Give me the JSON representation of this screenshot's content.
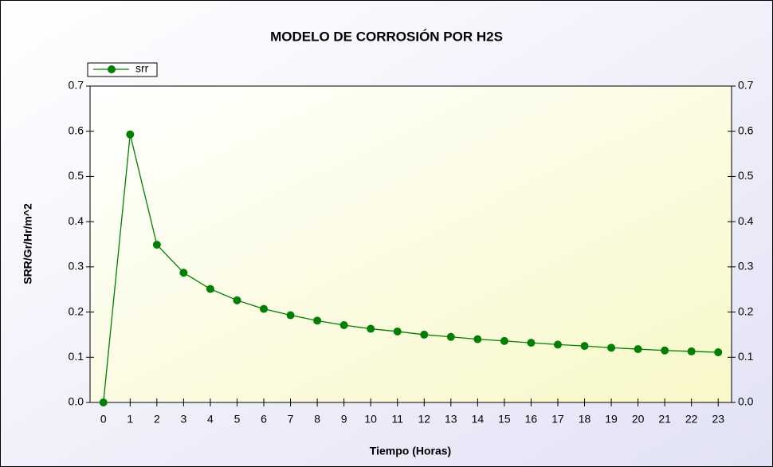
{
  "chart_data": {
    "type": "line",
    "title": "MODELO DE CORROSIÓN POR H2S",
    "x_label": "Tiempo (Horas)",
    "y_label": "SRR/Gr/Hr/m^2",
    "x": [
      0,
      1,
      2,
      3,
      4,
      5,
      6,
      7,
      8,
      9,
      10,
      11,
      12,
      13,
      14,
      15,
      16,
      17,
      18,
      19,
      20,
      21,
      22,
      23
    ],
    "series": [
      {
        "name": "srr",
        "color": "#008000",
        "values": [
          0,
          0.593,
          0.349,
          0.287,
          0.251,
          0.226,
          0.207,
          0.193,
          0.181,
          0.171,
          0.163,
          0.157,
          0.15,
          0.145,
          0.14,
          0.136,
          0.132,
          0.128,
          0.125,
          0.121,
          0.118,
          0.115,
          0.113,
          0.111
        ]
      }
    ],
    "xlim": [
      -0.5,
      23.5
    ],
    "xticks": [
      0,
      1,
      2,
      3,
      4,
      5,
      6,
      7,
      8,
      9,
      10,
      11,
      12,
      13,
      14,
      15,
      16,
      17,
      18,
      19,
      20,
      21,
      22,
      23
    ],
    "ylim": [
      0,
      0.7
    ],
    "yticks": [
      {
        "value": 0,
        "label": "0.0"
      },
      0.1,
      0.2,
      0.3,
      0.4,
      0.5,
      0.6,
      0.7
    ],
    "legend": "top-left"
  }
}
